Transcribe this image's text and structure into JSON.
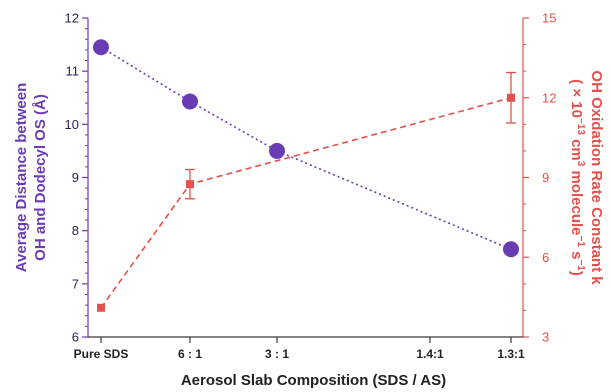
{
  "chart_data": {
    "type": "line",
    "xlabel": "Aerosol Slab Composition (SDS / AS)",
    "categories": [
      "Pure SDS",
      "6 : 1",
      "3 : 1",
      "1.4:1",
      "1.3:1"
    ],
    "ylabel_left": [
      "Average Distance between",
      "OH and Dodecyl OS (Å)"
    ],
    "ylabel_right": {
      "line1": "OH Oxidation Rate Constant k",
      "line2": [
        {
          "t": "( × 10"
        },
        {
          "t": "−13",
          "sup": true
        },
        {
          "t": " cm"
        },
        {
          "t": "3",
          "sup": true
        },
        {
          "t": " molecule"
        },
        {
          "t": "−1",
          "sup": true
        },
        {
          "t": " s"
        },
        {
          "t": "−1",
          "sup": true
        },
        {
          "t": ")"
        }
      ]
    },
    "ylim_left": [
      6,
      12
    ],
    "ylim_right": [
      3,
      15
    ],
    "yticks_left": [
      "6",
      "7",
      "8",
      "9",
      "10",
      "11",
      "12"
    ],
    "yticks_right": [
      "3",
      "6",
      "9",
      "12",
      "15"
    ],
    "grid": false,
    "legend": "none",
    "series": [
      {
        "axis": "left",
        "color": "#6a3cb4",
        "marker": "circle",
        "line_style": "dotted",
        "x": [
          0,
          1,
          2,
          4
        ],
        "values": [
          11.45,
          10.43,
          9.5,
          7.65
        ]
      },
      {
        "axis": "right",
        "color": "#e4504c",
        "marker": "square",
        "line_style": "dashed",
        "x": [
          0,
          1,
          4.7
        ],
        "values": [
          4.1,
          8.75,
          12.0
        ],
        "errors": [
          0,
          0.55,
          0.95
        ]
      }
    ]
  }
}
